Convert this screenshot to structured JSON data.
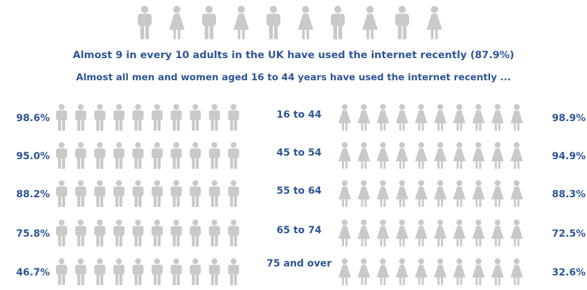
{
  "chart_data": {
    "type": "pictograph",
    "title": "Almost 9 in every 10 adults in the UK have used the internet recently (87.9%)",
    "subtitle": "Almost all men and women aged 16 to 44 years have used the internet recently ...",
    "overall": 87.9,
    "categories": [
      "16 to 44",
      "45 to 54",
      "55 to 64",
      "65 to 74",
      "75 and over"
    ],
    "ylim": [
      0,
      100
    ],
    "empty_color": "#c9c9c9",
    "series": [
      {
        "color": "#1e86cc",
        "values": [
          98.6,
          95.0,
          88.2,
          75.8,
          46.7
        ],
        "value_labels": [
          "98.6%",
          "95.0%",
          "88.2%",
          "75.8%",
          "46.7%"
        ]
      },
      {
        "color": "#e0241b",
        "values": [
          98.9,
          94.9,
          88.3,
          72.5,
          32.6
        ],
        "value_labels": [
          "98.9%",
          "94.9%",
          "88.3%",
          "72.5%",
          "32.6%"
        ]
      }
    ]
  }
}
